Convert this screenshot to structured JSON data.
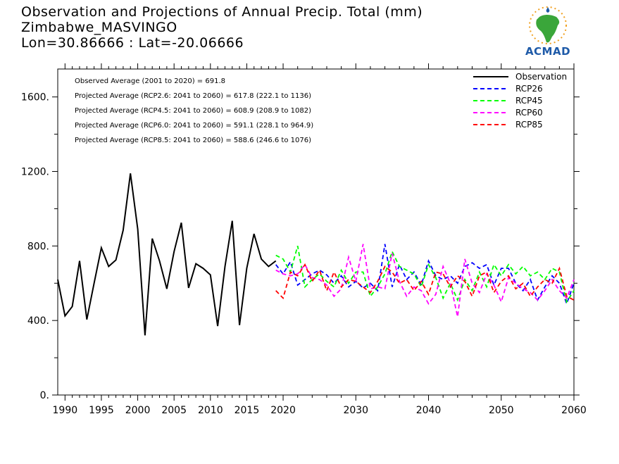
{
  "header": {
    "title_line1": "Observation and Projections of Annual Precip. Total (mm)",
    "title_line2": "Zimbabwe_MASVINGO",
    "title_line3": "Lon=30.86666 : Lat=-20.06666"
  },
  "logo": {
    "text": "ACMAD",
    "icon": "africa-map-logo"
  },
  "colors": {
    "Observation": "#000000",
    "RCP26": "#0000ff",
    "RCP45": "#00ff00",
    "RCP60": "#ff00ff",
    "RCP85": "#ff0000"
  },
  "chart_data": {
    "type": "line",
    "xlim": [
      1989,
      2060
    ],
    "ylim": [
      0,
      1750
    ],
    "y_ticks": [
      0,
      400,
      800,
      1200,
      1600
    ],
    "y_tick_labels": [
      "0.",
      "400.",
      "800.",
      "1200.",
      "1600."
    ],
    "x_ticks": [
      1990,
      1995,
      2000,
      2005,
      2010,
      2015,
      2020,
      2030,
      2040,
      2050,
      2060
    ],
    "x_tick_labels": [
      "1990",
      "1995",
      "2000",
      "2005",
      "2010",
      "2015",
      "2020",
      "2030",
      "2040",
      "2050",
      "2060"
    ],
    "annotations": [
      "Observed Average (2001 to 2020) = 691.8",
      "Projected Average (RCP2.6: 2041 to 2060) = 617.8 (222.1 to 1136)",
      "Projected Average (RCP4.5: 2041 to 2060) = 608.9 (208.9 to 1082)",
      "Projected Average (RCP6.0: 2041 to 2060) = 591.1 (228.1 to 964.9)",
      "Projected Average (RCP8.5: 2041 to 2060) = 588.6 (246.6 to 1076)"
    ],
    "legend_position": "top-right",
    "series": [
      {
        "name": "Observation",
        "style": "solid",
        "x": [
          1989,
          1990,
          1991,
          1992,
          1993,
          1994,
          1995,
          1996,
          1997,
          1998,
          1999,
          2000,
          2001,
          2002,
          2003,
          2004,
          2005,
          2006,
          2007,
          2008,
          2009,
          2010,
          2011,
          2012,
          2013,
          2014,
          2015,
          2016,
          2017,
          2018,
          2019
        ],
        "values": [
          620,
          425,
          475,
          720,
          405,
          600,
          790,
          690,
          725,
          885,
          1190,
          890,
          320,
          840,
          720,
          570,
          770,
          925,
          575,
          705,
          680,
          645,
          370,
          690,
          935,
          375,
          680,
          865,
          730,
          690,
          720
        ]
      },
      {
        "name": "RCP26",
        "style": "dashed",
        "x": [
          2019,
          2020,
          2021,
          2022,
          2023,
          2024,
          2025,
          2026,
          2027,
          2028,
          2029,
          2030,
          2031,
          2032,
          2033,
          2034,
          2035,
          2036,
          2037,
          2038,
          2039,
          2040,
          2041,
          2042,
          2043,
          2044,
          2045,
          2046,
          2047,
          2048,
          2049,
          2050,
          2051,
          2052,
          2053,
          2054,
          2055,
          2056,
          2057,
          2058,
          2059,
          2060
        ],
        "values": [
          700,
          650,
          715,
          590,
          620,
          650,
          670,
          645,
          600,
          640,
          580,
          610,
          575,
          600,
          560,
          810,
          580,
          700,
          620,
          660,
          590,
          720,
          640,
          620,
          640,
          600,
          690,
          710,
          680,
          700,
          590,
          680,
          680,
          600,
          560,
          620,
          510,
          580,
          640,
          600,
          490,
          600
        ]
      },
      {
        "name": "RCP45",
        "style": "dashed",
        "x": [
          2019,
          2020,
          2021,
          2022,
          2023,
          2024,
          2025,
          2026,
          2027,
          2028,
          2029,
          2030,
          2031,
          2032,
          2033,
          2034,
          2035,
          2036,
          2037,
          2038,
          2039,
          2040,
          2041,
          2042,
          2043,
          2044,
          2045,
          2046,
          2047,
          2048,
          2049,
          2050,
          2051,
          2052,
          2053,
          2054,
          2055,
          2056,
          2057,
          2058,
          2059,
          2060
        ],
        "values": [
          750,
          730,
          660,
          800,
          580,
          620,
          650,
          610,
          580,
          670,
          600,
          660,
          660,
          530,
          580,
          650,
          770,
          690,
          670,
          650,
          580,
          700,
          630,
          520,
          600,
          510,
          620,
          560,
          660,
          580,
          700,
          640,
          700,
          650,
          690,
          640,
          660,
          620,
          680,
          660,
          500,
          560
        ]
      },
      {
        "name": "RCP60",
        "style": "dashed",
        "x": [
          2019,
          2020,
          2021,
          2022,
          2023,
          2024,
          2025,
          2026,
          2027,
          2028,
          2029,
          2030,
          2031,
          2032,
          2033,
          2034,
          2035,
          2036,
          2037,
          2038,
          2039,
          2040,
          2041,
          2042,
          2043,
          2044,
          2045,
          2046,
          2047,
          2048,
          2049,
          2050,
          2051,
          2052,
          2053,
          2054,
          2055,
          2056,
          2057,
          2058,
          2059,
          2060
        ],
        "values": [
          670,
          650,
          640,
          650,
          700,
          630,
          620,
          590,
          530,
          570,
          740,
          610,
          810,
          570,
          580,
          570,
          760,
          610,
          530,
          580,
          560,
          490,
          540,
          690,
          600,
          420,
          730,
          600,
          550,
          650,
          590,
          500,
          630,
          600,
          570,
          550,
          510,
          560,
          620,
          560,
          520,
          620
        ]
      },
      {
        "name": "RCP85",
        "style": "dashed",
        "x": [
          2019,
          2020,
          2021,
          2022,
          2023,
          2024,
          2025,
          2026,
          2027,
          2028,
          2029,
          2030,
          2031,
          2032,
          2033,
          2034,
          2035,
          2036,
          2037,
          2038,
          2039,
          2040,
          2041,
          2042,
          2043,
          2044,
          2045,
          2046,
          2047,
          2048,
          2049,
          2050,
          2051,
          2052,
          2053,
          2054,
          2055,
          2056,
          2057,
          2058,
          2059,
          2060
        ],
        "values": [
          560,
          520,
          660,
          640,
          700,
          610,
          670,
          560,
          660,
          580,
          620,
          610,
          580,
          550,
          610,
          690,
          660,
          600,
          620,
          560,
          610,
          540,
          660,
          650,
          580,
          640,
          610,
          530,
          640,
          660,
          550,
          610,
          640,
          570,
          600,
          530,
          580,
          620,
          600,
          680,
          530,
          510
        ]
      }
    ]
  }
}
